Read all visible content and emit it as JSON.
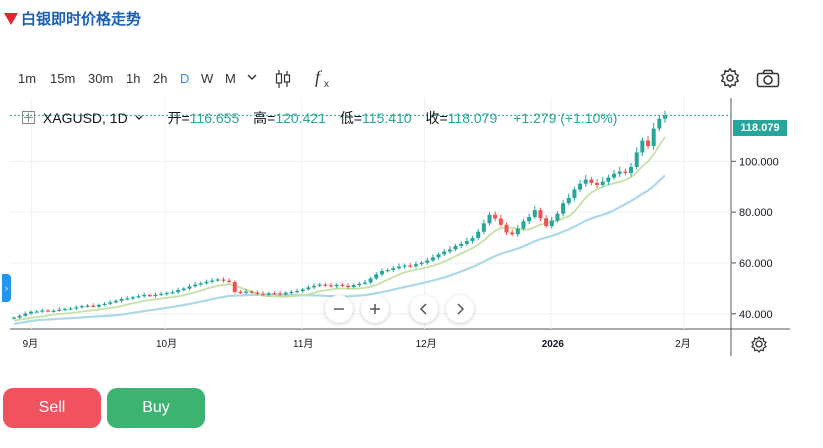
{
  "header": {
    "title": "白银即时价格走势",
    "arrow_color": "#e0262e",
    "title_color": "#1a5fb4"
  },
  "toolbar": {
    "timeframes": [
      {
        "label": "1m",
        "active": false
      },
      {
        "label": "15m",
        "active": false
      },
      {
        "label": "30m",
        "active": false
      },
      {
        "label": "1h",
        "active": false
      },
      {
        "label": "2h",
        "active": false
      },
      {
        "label": "D",
        "active": true
      },
      {
        "label": "W",
        "active": false
      },
      {
        "label": "M",
        "active": false
      }
    ],
    "icons": [
      "chevron-down-icon",
      "candlestick-icon",
      "indicator-fx-icon",
      "settings-gear-icon",
      "camera-icon"
    ]
  },
  "legend": {
    "symbol": "XAGUSD, 1D",
    "open_label": "开=",
    "open": "116.655",
    "high_label": "高=",
    "high": "120.421",
    "low_label": "低=",
    "low": "115.410",
    "close_label": "收=",
    "close": "118.079",
    "change": "+1.279 (+1.10%)"
  },
  "price_tag": "118.079",
  "chart_data": {
    "type": "candlestick",
    "x_ticks": [
      "9月",
      "10月",
      "11月",
      "12月",
      "2026",
      "2月"
    ],
    "y_ticks": [
      "40.000",
      "60.000",
      "80.000",
      "100.000"
    ],
    "ylim": [
      34,
      121
    ],
    "grid": true,
    "colors": {
      "up": "#26a69a",
      "down": "#ef5350",
      "ma_fast": "#c5e1a5",
      "ma_slow": "#add8e6"
    },
    "close_series": [
      38.5,
      39.2,
      40.1,
      40.8,
      40.9,
      41.3,
      41.0,
      41.2,
      41.6,
      41.9,
      42.1,
      42.5,
      43.0,
      43.2,
      42.8,
      43.5,
      43.9,
      44.5,
      45.1,
      45.8,
      46.0,
      46.5,
      46.9,
      47.4,
      47.0,
      47.5,
      47.8,
      48.2,
      48.5,
      49.3,
      49.9,
      50.8,
      51.5,
      52.0,
      52.6,
      53.1,
      53.5,
      53.0,
      52.5,
      48.6,
      48.3,
      48.7,
      48.4,
      47.9,
      47.5,
      48.1,
      48.0,
      47.6,
      48.3,
      48.6,
      48.9,
      49.6,
      50.4,
      51.0,
      51.5,
      51.2,
      50.8,
      51.4,
      51.0,
      50.5,
      51.3,
      51.8,
      52.3,
      53.9,
      55.5,
      56.8,
      57.2,
      57.9,
      58.6,
      59.0,
      58.7,
      59.5,
      60.1,
      61.0,
      62.2,
      63.4,
      64.5,
      65.3,
      66.7,
      67.5,
      68.6,
      69.8,
      72.3,
      75.6,
      79.0,
      77.5,
      75.0,
      72.0,
      71.3,
      73.5,
      76.4,
      78.1,
      80.8,
      77.6,
      74.5,
      76.7,
      79.4,
      83.5,
      85.6,
      88.9,
      91.2,
      92.8,
      91.5,
      90.7,
      92.0,
      93.6,
      95.1,
      96.0,
      95.4,
      97.8,
      103.5,
      108.2,
      106.0,
      112.9,
      116.8,
      118.079
    ]
  }
}
